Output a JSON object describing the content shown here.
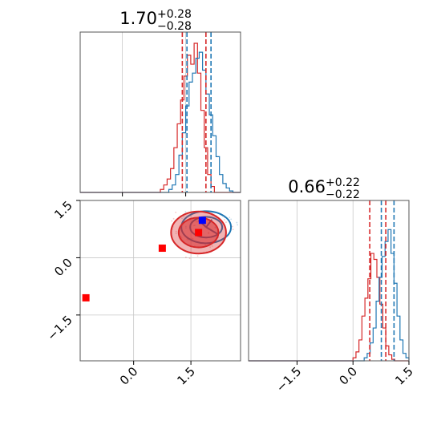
{
  "chart_data": {
    "type": "corner",
    "colors": {
      "red": "#d62728",
      "blue": "#1f77b4",
      "marker_red": "#ff0000",
      "marker_blue": "#0000ff",
      "grid": "#c8c8c8"
    },
    "panels": [
      {
        "kind": "hist1d",
        "param_index": 0,
        "title": {
          "median": "1.70",
          "plus": "+0.28",
          "minus": "−0.28"
        },
        "xlim": [
          -1.0,
          2.8
        ],
        "ylim": [
          0,
          1
        ],
        "xticks": [
          0.0,
          1.5
        ],
        "grid_x": [
          0.0,
          1.5
        ],
        "series": [
          {
            "name": "",
            "color": "#d62728",
            "bin_edges": [
              0.9,
              0.98,
              1.06,
              1.14,
              1.22,
              1.3,
              1.38,
              1.46,
              1.54,
              1.62,
              1.7,
              1.78,
              1.86,
              1.94,
              2.02,
              2.1,
              2.18
            ],
            "counts": [
              0.02,
              0.05,
              0.09,
              0.16,
              0.3,
              0.46,
              0.62,
              0.78,
              0.92,
              0.86,
              1.0,
              0.8,
              0.55,
              0.3,
              0.12,
              0.04
            ]
          },
          {
            "name": "",
            "color": "#1f77b4",
            "bin_edges": [
              1.1,
              1.18,
              1.26,
              1.34,
              1.42,
              1.5,
              1.58,
              1.66,
              1.74,
              1.82,
              1.9,
              1.98,
              2.06,
              2.14,
              2.22,
              2.3,
              2.38,
              2.46,
              2.54,
              2.62
            ],
            "counts": [
              0.02,
              0.05,
              0.12,
              0.25,
              0.4,
              0.58,
              0.74,
              0.8,
              0.9,
              0.94,
              0.82,
              0.66,
              0.52,
              0.38,
              0.24,
              0.12,
              0.06,
              0.03,
              0.01
            ]
          }
        ],
        "quantiles": [
          {
            "color": "#d62728",
            "x": [
              1.42,
              1.98
            ]
          },
          {
            "color": "#1f77b4",
            "x": [
              1.53,
              2.1
            ]
          }
        ]
      },
      {
        "kind": "hist1d",
        "param_index": 1,
        "title": {
          "median": "0.66",
          "plus": "+0.22",
          "minus": "−0.22"
        },
        "xlim": [
          -2.8,
          1.5
        ],
        "ylim": [
          0,
          1
        ],
        "xticks": [
          -1.5,
          0.0,
          1.5
        ],
        "xticklabels": [
          "−1.5",
          "0.0",
          "1.5"
        ],
        "grid_x": [
          -1.5,
          0.0,
          1.5
        ],
        "series": [
          {
            "name": "",
            "color": "#d62728",
            "bin_edges": [
              0.0,
              0.08,
              0.16,
              0.24,
              0.32,
              0.4,
              0.48,
              0.56,
              0.64,
              0.72,
              0.8,
              0.88,
              0.96,
              1.04,
              1.12
            ],
            "counts": [
              0.02,
              0.06,
              0.14,
              0.3,
              0.42,
              0.55,
              0.72,
              0.68,
              0.56,
              0.38,
              0.22,
              0.1,
              0.04,
              0.01
            ]
          },
          {
            "name": "",
            "color": "#1f77b4",
            "bin_edges": [
              0.3,
              0.38,
              0.46,
              0.54,
              0.62,
              0.7,
              0.78,
              0.86,
              0.94,
              1.02,
              1.1,
              1.18,
              1.26,
              1.34,
              1.42,
              1.5
            ],
            "counts": [
              0.02,
              0.05,
              0.12,
              0.22,
              0.4,
              0.56,
              0.7,
              0.8,
              0.88,
              0.72,
              0.52,
              0.3,
              0.14,
              0.05,
              0.02
            ]
          }
        ],
        "quantiles": [
          {
            "color": "#d62728",
            "x": [
              0.45,
              0.88
            ]
          },
          {
            "color": "#1f77b4",
            "x": [
              0.76,
              1.1
            ]
          }
        ]
      },
      {
        "kind": "hist2d",
        "xlim": [
          -1.4,
          2.8
        ],
        "ylim": [
          -2.7,
          1.5
        ],
        "xticks": [
          0.0,
          1.5
        ],
        "yticks": [
          -1.5,
          0.0,
          1.5
        ],
        "yticklabels": [
          "−1.5",
          "0.0",
          "1.5"
        ],
        "grid_x": [
          0.0,
          1.5
        ],
        "grid_y": [
          -1.5,
          0.0,
          1.5
        ],
        "contours": [
          {
            "color": "#1f77b4",
            "center": [
              1.9,
              0.8
            ],
            "levels": [
              {
                "rx": 0.65,
                "ry": 0.42
              },
              {
                "rx": 0.42,
                "ry": 0.27
              }
            ],
            "wedges": [
              [
                1.9,
                0.8,
                2.2,
                0.62
              ],
              [
                1.9,
                0.8,
                2.05,
                1.0
              ],
              [
                1.9,
                0.8,
                1.7,
                0.98
              ]
            ]
          },
          {
            "color": "#d62728",
            "center": [
              1.7,
              0.66
            ],
            "levels": [
              {
                "rx": 0.72,
                "ry": 0.55
              },
              {
                "rx": 0.52,
                "ry": 0.39
              }
            ]
          }
        ],
        "scatter": [
          {
            "color": "#ff0000",
            "x": 0.75,
            "y": 0.25,
            "marker": "square"
          },
          {
            "color": "#ff0000",
            "x": -1.25,
            "y": -1.05,
            "marker": "square"
          },
          {
            "color": "#ff0000",
            "x": 1.7,
            "y": 0.66,
            "marker": "square"
          },
          {
            "color": "#0000ff",
            "x": 1.8,
            "y": 0.98,
            "marker": "square"
          }
        ]
      }
    ]
  }
}
